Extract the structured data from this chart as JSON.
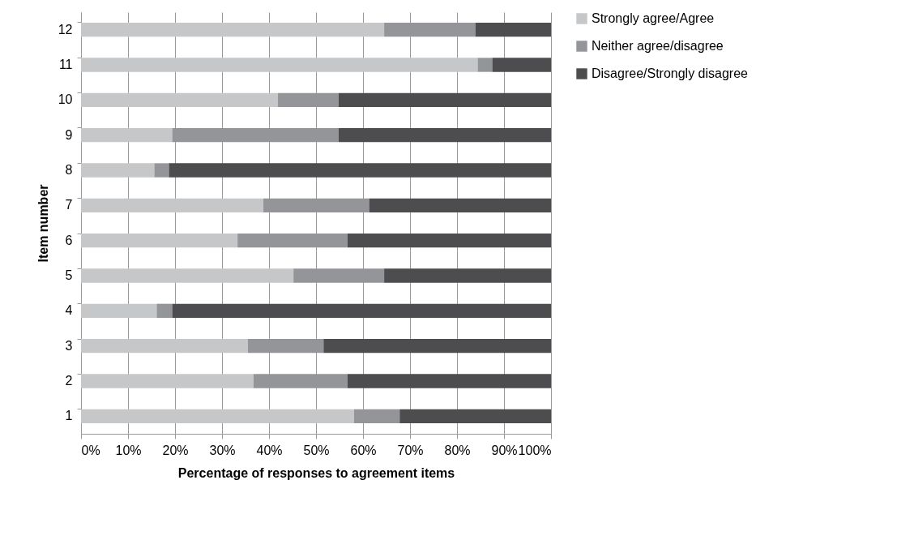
{
  "chart_data": {
    "type": "bar",
    "orientation": "horizontal",
    "stacked": true,
    "xlabel": "Percentage of responses to agreement items",
    "ylabel": "Item number",
    "categories": [
      "12",
      "11",
      "10",
      "9",
      "8",
      "7",
      "6",
      "5",
      "4",
      "3",
      "2",
      "1"
    ],
    "series": [
      {
        "name": "Strongly agree/Agree",
        "color": "#c6c7c9",
        "values": [
          64.5,
          84.4,
          41.9,
          19.4,
          15.6,
          38.8,
          33.3,
          45.2,
          16.1,
          35.5,
          36.7,
          58.1
        ]
      },
      {
        "name": "Neither agree/disagree",
        "color": "#949598",
        "values": [
          19.4,
          3.1,
          12.9,
          35.4,
          3.1,
          22.5,
          23.4,
          19.3,
          3.3,
          16.1,
          20.0,
          9.7
        ]
      },
      {
        "name": "Disagree/Strongly disagree",
        "color": "#4d4d4f",
        "values": [
          16.1,
          12.5,
          45.2,
          45.2,
          81.3,
          38.7,
          43.3,
          35.5,
          80.6,
          48.4,
          43.3,
          32.2
        ]
      }
    ],
    "xlim": [
      0,
      100
    ],
    "xticks": [
      {
        "value": 0,
        "label": "0%"
      },
      {
        "value": 10,
        "label": "10%"
      },
      {
        "value": 20,
        "label": "20%"
      },
      {
        "value": 30,
        "label": "30%"
      },
      {
        "value": 40,
        "label": "40%"
      },
      {
        "value": 50,
        "label": "50%"
      },
      {
        "value": 60,
        "label": "60%"
      },
      {
        "value": 70,
        "label": "70%"
      },
      {
        "value": 80,
        "label": "80%"
      },
      {
        "value": 90,
        "label": "90%"
      },
      {
        "value": 100,
        "label": "100%"
      }
    ],
    "grid": "x",
    "legend": "right"
  }
}
